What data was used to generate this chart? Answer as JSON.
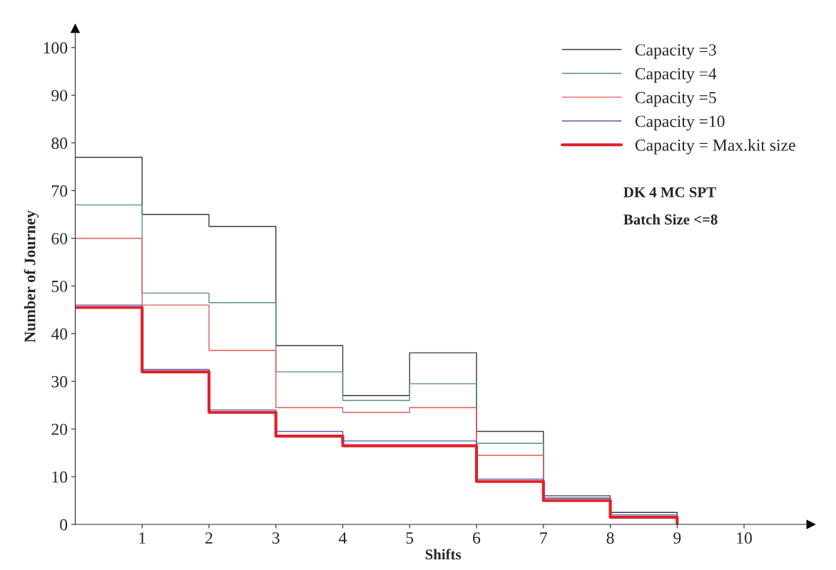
{
  "chart_data": {
    "type": "step",
    "xlabel": "Shifts",
    "ylabel": "Number of Journey",
    "x": [
      0,
      1,
      2,
      3,
      4,
      5,
      6,
      7,
      8,
      9
    ],
    "series": [
      {
        "name": "Capacity =3",
        "color": "#3a3a3a",
        "values": [
          77,
          65,
          62.5,
          37.5,
          27,
          36,
          19.5,
          6,
          2.5,
          0
        ]
      },
      {
        "name": "Capacity =4",
        "color": "#5a8f80",
        "values": [
          67,
          48.5,
          46.5,
          32,
          26,
          29.5,
          17,
          5.5,
          2,
          0
        ]
      },
      {
        "name": "Capacity =5",
        "color": "#e05a5a",
        "values": [
          60,
          46,
          36.5,
          24.5,
          23.5,
          24.5,
          14.5,
          5,
          1.5,
          0
        ]
      },
      {
        "name": "Capacity =10",
        "color": "#5060b0",
        "values": [
          46,
          32.5,
          24,
          19.5,
          17.5,
          17.5,
          9.5,
          5.5,
          2,
          0
        ]
      },
      {
        "name": "Capacity = Max.kit size",
        "color": "#e0202a",
        "values": [
          45.5,
          32,
          23.5,
          18.5,
          16.5,
          16.5,
          9,
          5,
          1.5,
          0
        ]
      }
    ],
    "xlim": [
      0,
      11
    ],
    "xticks": [
      1,
      2,
      3,
      4,
      5,
      6,
      7,
      8,
      9,
      10
    ],
    "ylim": [
      0,
      104
    ],
    "yticks": [
      0,
      10,
      20,
      30,
      40,
      50,
      60,
      70,
      80,
      90,
      100
    ],
    "grid": false,
    "legend": "top right",
    "annotations": [
      "DK 4 MC SPT",
      "Batch Size <=8"
    ]
  }
}
